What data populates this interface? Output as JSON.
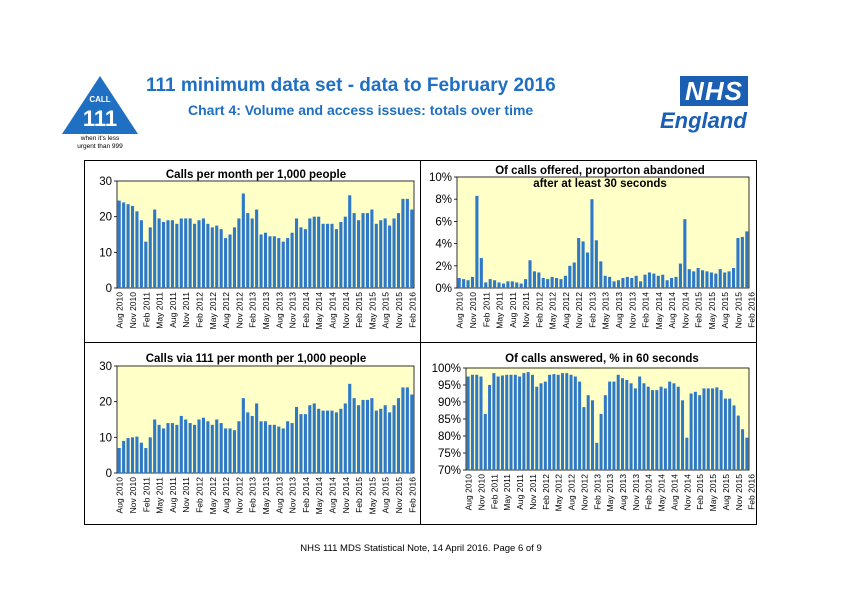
{
  "header": {
    "title": "111 minimum data set - data to February 2016",
    "subtitle": "Chart 4: Volume and access issues: totals over time",
    "logo_call": "CALL",
    "logo_number": "111",
    "logo_tagline_1": "when it's less",
    "logo_tagline_2": "urgent than 999",
    "nhs_box": "NHS",
    "nhs_england": "England"
  },
  "colors": {
    "bar": "#2e78c8",
    "plot_bg": "#ffffc8",
    "title": "#1f6fc2",
    "nhs": "#1a5fb4"
  },
  "footer": {
    "text": "NHS 111 MDS Statistical Note, 14 April 2016.     Page 6 of 9"
  },
  "chart_data": [
    {
      "type": "bar",
      "title": "Calls per month per 1,000 people",
      "ylim": [
        0,
        30
      ],
      "yticks": [
        "0",
        "10",
        "20",
        "30"
      ],
      "xlabels": [
        "Aug 2010",
        "Nov 2010",
        "Feb 2011",
        "May 2011",
        "Aug 2011",
        "Nov 2011",
        "Feb 2012",
        "May 2012",
        "Aug 2012",
        "Nov 2012",
        "Feb 2013",
        "May 2013",
        "Aug 2013",
        "Nov 2013",
        "Feb 2014",
        "May 2014",
        "Aug 2014",
        "Nov 2014",
        "Feb 2015",
        "May 2015",
        "Aug 2015",
        "Nov 2015",
        "Feb 2016"
      ],
      "values": [
        24.5,
        24,
        23.5,
        23,
        21.5,
        19,
        13,
        17,
        22,
        19.5,
        18.5,
        19,
        19,
        18,
        19.5,
        19.5,
        19.5,
        18,
        19,
        19.5,
        18,
        17,
        17.5,
        16.5,
        14,
        15,
        17,
        19.5,
        26.5,
        21,
        19.5,
        22,
        15,
        15.5,
        14.5,
        14.5,
        14,
        13,
        14,
        15.5,
        19.5,
        17,
        16.5,
        19.5,
        20,
        20,
        18,
        18,
        18,
        16.5,
        18.5,
        20,
        26,
        21,
        19,
        21,
        21,
        22,
        18,
        19,
        19.5,
        17.5,
        19.5,
        21,
        25,
        25,
        22
      ]
    },
    {
      "type": "bar",
      "title": "Of calls offered, proporton abandoned after at least 30 seconds",
      "ylim": [
        0,
        10
      ],
      "yticks": [
        "0%",
        "2%",
        "4%",
        "6%",
        "8%",
        "10%"
      ],
      "xlabels": [
        "Aug 2010",
        "Nov 2010",
        "Feb 2011",
        "May 2011",
        "Aug 2011",
        "Nov 2011",
        "Feb 2012",
        "May 2012",
        "Aug 2012",
        "Nov 2012",
        "Feb 2013",
        "May 2013",
        "Aug 2013",
        "Nov 2013",
        "Feb 2014",
        "May 2014",
        "Aug 2014",
        "Nov 2014",
        "Feb 2015",
        "May 2015",
        "Aug 2015",
        "Nov 2015",
        "Feb 2016"
      ],
      "values": [
        0.9,
        0.8,
        0.7,
        1.0,
        8.3,
        2.7,
        0.5,
        0.8,
        0.7,
        0.5,
        0.4,
        0.6,
        0.6,
        0.5,
        0.4,
        0.8,
        2.5,
        1.5,
        1.4,
        0.9,
        0.8,
        1.0,
        0.9,
        0.8,
        1.1,
        2.0,
        2.3,
        4.5,
        4.2,
        3.2,
        8.0,
        4.3,
        2.4,
        1.1,
        1.0,
        0.6,
        0.7,
        0.9,
        1.0,
        0.9,
        1.1,
        0.6,
        1.2,
        1.4,
        1.3,
        1.1,
        1.2,
        0.7,
        0.9,
        1.0,
        2.2,
        6.2,
        1.7,
        1.5,
        1.8,
        1.6,
        1.5,
        1.4,
        1.3,
        1.7,
        1.4,
        1.5,
        1.8,
        4.5,
        4.6,
        5.1
      ]
    },
    {
      "type": "bar",
      "title": "Calls via 111 per month per 1,000 people",
      "ylim": [
        0,
        30
      ],
      "yticks": [
        "0",
        "10",
        "20",
        "30"
      ],
      "xlabels": [
        "Aug 2010",
        "Nov 2010",
        "Feb 2011",
        "May 2011",
        "Aug 2011",
        "Nov 2011",
        "Feb 2012",
        "May 2012",
        "Aug 2012",
        "Nov 2012",
        "Feb 2013",
        "May 2013",
        "Aug 2013",
        "Nov 2013",
        "Feb 2014",
        "May 2014",
        "Aug 2014",
        "Nov 2014",
        "Feb 2015",
        "May 2015",
        "Aug 2015",
        "Nov 2015",
        "Feb 2016"
      ],
      "values": [
        7,
        9,
        9.8,
        10,
        10.2,
        8.5,
        7,
        10,
        15,
        13.5,
        12.5,
        14,
        14,
        13.5,
        16,
        15,
        14,
        13.5,
        15,
        15.5,
        14.5,
        13.5,
        15,
        14,
        12.5,
        12.5,
        12,
        14.5,
        21,
        17,
        16,
        19.5,
        14.5,
        14.5,
        13.5,
        13.5,
        13,
        12.5,
        14.5,
        14,
        18.5,
        16.5,
        16.5,
        19,
        19.5,
        18,
        17.5,
        17.5,
        17.5,
        17,
        18,
        19.5,
        25,
        21,
        19,
        20.5,
        20.5,
        21,
        17.5,
        18,
        19,
        17,
        19,
        21,
        24,
        24,
        22
      ]
    },
    {
      "type": "bar",
      "title": "Of calls answered, % in 60 seconds",
      "ylim": [
        70,
        100
      ],
      "yticks": [
        "70%",
        "75%",
        "80%",
        "85%",
        "90%",
        "95%",
        "100%"
      ],
      "xlabels": [
        "Aug 2010",
        "Nov 2010",
        "Feb 2011",
        "May 2011",
        "Aug 2011",
        "Nov 2011",
        "Feb 2012",
        "May 2012",
        "Aug 2012",
        "Nov 2012",
        "Feb 2013",
        "May 2013",
        "Aug 2013",
        "Nov 2013",
        "Feb 2014",
        "May 2014",
        "Aug 2014",
        "Nov 2014",
        "Feb 2015",
        "May 2015",
        "Aug 2015",
        "Nov 2015",
        "Feb 2016"
      ],
      "values": [
        97.5,
        98,
        98,
        97.5,
        86.5,
        95,
        98.5,
        97.5,
        97.8,
        98,
        98,
        98,
        97.5,
        98.5,
        98.8,
        98,
        94.5,
        95.5,
        96,
        98,
        98.2,
        98,
        98.5,
        98.5,
        98,
        97.5,
        96,
        88.5,
        92,
        90.5,
        78,
        86.5,
        92,
        96,
        96,
        98,
        97,
        96.5,
        95.5,
        94,
        97.5,
        95.5,
        94.5,
        93.5,
        93.5,
        94.5,
        94,
        96,
        95.5,
        94.5,
        90.5,
        79.5,
        92.5,
        93,
        92,
        94,
        94,
        94,
        94.3,
        93.5,
        91,
        91,
        89,
        86,
        82,
        79.5
      ]
    }
  ]
}
